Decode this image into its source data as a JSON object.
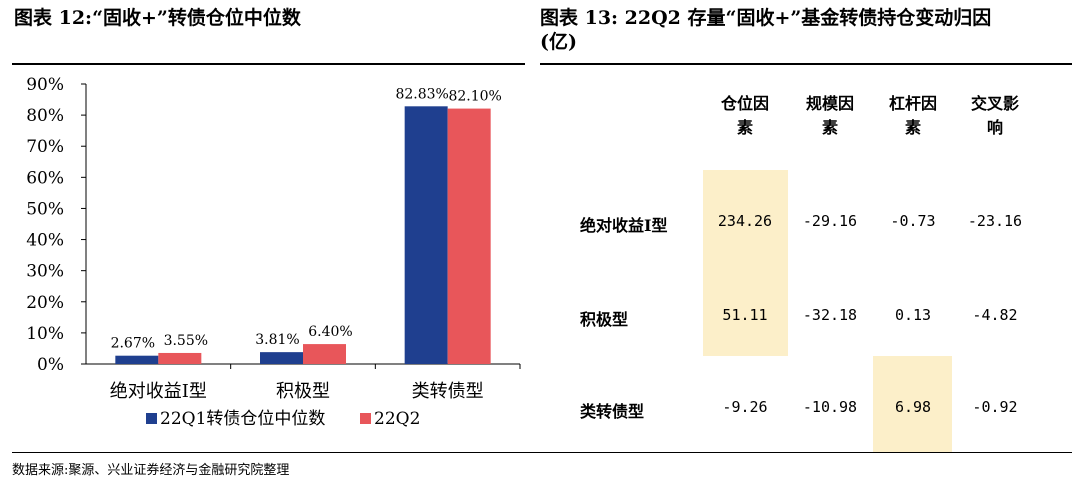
{
  "left_title": "图表 12:“固收+”转债仓位中位数",
  "right_title_line1": "图表 13: 22Q2 存量“固收+”基金转债持仓变动归因",
  "right_title_line2": "(亿)",
  "source": "数据来源:聚源、兴业证券经济与金融研究院整理",
  "chart_data": [
    {
      "type": "bar",
      "categories": [
        "绝对收益I型",
        "积极型",
        "类转债型"
      ],
      "series": [
        {
          "name": "22Q1转债仓位中位数",
          "values": [
            2.67,
            3.81,
            82.83
          ],
          "labels": [
            "2.67%",
            "3.81%",
            "82.83%"
          ],
          "color": "#1f3f8f"
        },
        {
          "name": "22Q2",
          "values": [
            3.55,
            6.4,
            82.1
          ],
          "labels": [
            "3.55%",
            "6.40%",
            "82.10%"
          ],
          "color": "#e8565a"
        }
      ],
      "ylim": [
        0,
        90
      ],
      "yticks": [
        "0%",
        "10%",
        "20%",
        "30%",
        "40%",
        "50%",
        "60%",
        "70%",
        "80%",
        "90%"
      ],
      "legend_position": "bottom",
      "grid": false
    },
    {
      "type": "table",
      "columns": [
        "仓位因素",
        "规模因素",
        "杠杆因素",
        "交叉影响"
      ],
      "rows": [
        {
          "label": "绝对收益Ⅰ型",
          "values": [
            "234.26",
            "-29.16",
            "-0.73",
            "-23.16"
          ]
        },
        {
          "label": "积极型",
          "values": [
            "51.11",
            "-32.18",
            "0.13",
            "-4.82"
          ]
        },
        {
          "label": "类转债型",
          "values": [
            "-9.26",
            "-10.98",
            "6.98",
            "-0.92"
          ]
        }
      ],
      "highlight_color": "#fcefc9"
    }
  ]
}
